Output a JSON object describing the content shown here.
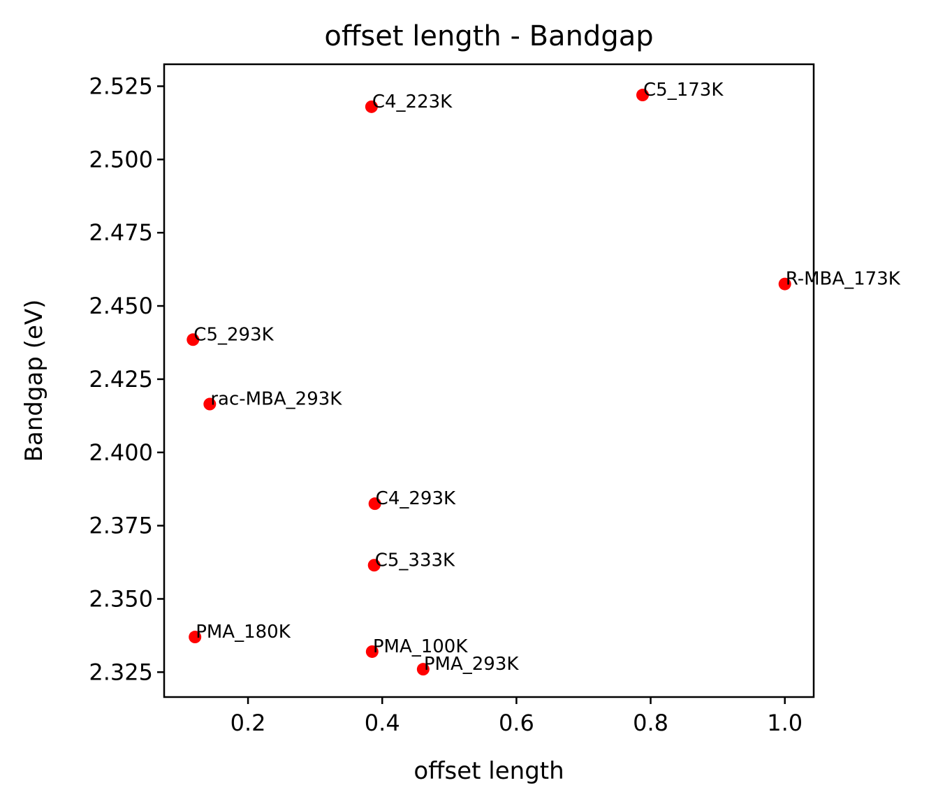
{
  "chart_data": {
    "type": "scatter",
    "title": "offset length - Bandgap",
    "xlabel": "offset length",
    "ylabel": "Bandgap (eV)",
    "xlim": [
      0.075,
      1.043
    ],
    "ylim": [
      2.3165,
      2.5325
    ],
    "x_ticks": [
      {
        "value": 0.2,
        "label": "0.2"
      },
      {
        "value": 0.4,
        "label": "0.4"
      },
      {
        "value": 0.6,
        "label": "0.6"
      },
      {
        "value": 0.8,
        "label": "0.8"
      },
      {
        "value": 1.0,
        "label": "1.0"
      }
    ],
    "y_ticks": [
      {
        "value": 2.325,
        "label": "2.325"
      },
      {
        "value": 2.35,
        "label": "2.350"
      },
      {
        "value": 2.375,
        "label": "2.375"
      },
      {
        "value": 2.4,
        "label": "2.400"
      },
      {
        "value": 2.425,
        "label": "2.425"
      },
      {
        "value": 2.45,
        "label": "2.450"
      },
      {
        "value": 2.475,
        "label": "2.475"
      },
      {
        "value": 2.5,
        "label": "2.500"
      },
      {
        "value": 2.525,
        "label": "2.525"
      }
    ],
    "grid": false,
    "marker_color": "#ff0000",
    "points": [
      {
        "label": "C4_223K",
        "x": 0.384,
        "y": 2.518
      },
      {
        "label": "C5_173K",
        "x": 0.788,
        "y": 2.522
      },
      {
        "label": "R-MBA_173K",
        "x": 1.0,
        "y": 2.4575
      },
      {
        "label": "C5_293K",
        "x": 0.118,
        "y": 2.4385
      },
      {
        "label": "rac-MBA_293K",
        "x": 0.143,
        "y": 2.4165
      },
      {
        "label": "C4_293K",
        "x": 0.389,
        "y": 2.3825
      },
      {
        "label": "C5_333K",
        "x": 0.388,
        "y": 2.3615
      },
      {
        "label": "PMA_180K",
        "x": 0.121,
        "y": 2.337
      },
      {
        "label": "PMA_100K",
        "x": 0.385,
        "y": 2.332
      },
      {
        "label": "PMA_293K",
        "x": 0.461,
        "y": 2.326
      }
    ]
  }
}
